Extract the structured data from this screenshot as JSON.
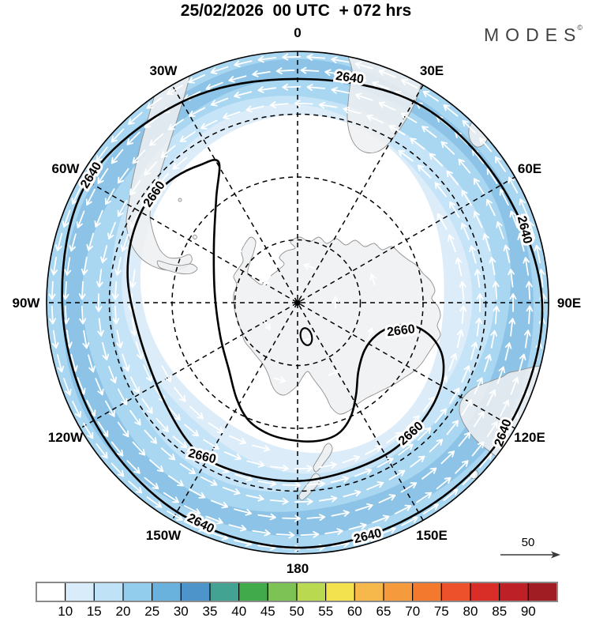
{
  "title": "25/02/2026  00 UTC  + 072 hrs",
  "logo": {
    "text": "MODES",
    "mark": "©"
  },
  "chart_data": {
    "type": "map",
    "projection": "south-polar-stereographic",
    "description": "Geopotential-height contours (2640/2660) with wind-speed shading and white wind-direction arrows over the Southern Hemisphere, Antarctica at center",
    "contour_levels": [
      "2640",
      "2660"
    ],
    "compass_labels": [
      {
        "angle": 0,
        "label": "0"
      },
      {
        "angle": 30,
        "label": "30E"
      },
      {
        "angle": 60,
        "label": "60E"
      },
      {
        "angle": 90,
        "label": "90E"
      },
      {
        "angle": 120,
        "label": "120E"
      },
      {
        "angle": 150,
        "label": "150E"
      },
      {
        "angle": 180,
        "label": "180"
      },
      {
        "angle": 210,
        "label": "150W"
      },
      {
        "angle": 240,
        "label": "120W"
      },
      {
        "angle": 270,
        "label": "90W"
      },
      {
        "angle": 300,
        "label": "60W"
      },
      {
        "angle": 330,
        "label": "30W"
      }
    ],
    "colorbar": {
      "tick_labels": [
        "10",
        "15",
        "20",
        "25",
        "30",
        "35",
        "40",
        "45",
        "50",
        "55",
        "60",
        "65",
        "70",
        "75",
        "80",
        "85",
        "90"
      ],
      "cell_colors": [
        "#ffffff",
        "#d8ecf9",
        "#bfe2f6",
        "#93cdee",
        "#6ab2de",
        "#4d94cb",
        "#42a393",
        "#41ab4c",
        "#7dc254",
        "#b9da50",
        "#f3e14e",
        "#f6b74b",
        "#f59a3d",
        "#f3792f",
        "#ec512b",
        "#d92e27",
        "#bd2127",
        "#9f1d23"
      ]
    },
    "reference_arrow": {
      "label": "50"
    },
    "shading_band_colors": [
      "#ffffff",
      "#dcedf9",
      "#c6e4f7",
      "#a9d6f0",
      "#8cc3e6",
      "#a9d6f0"
    ],
    "land_fill": "#eef0f1",
    "land_stroke": "#8f8f8f",
    "arrow_color": "#ffffff",
    "contour_color": "#000000"
  }
}
